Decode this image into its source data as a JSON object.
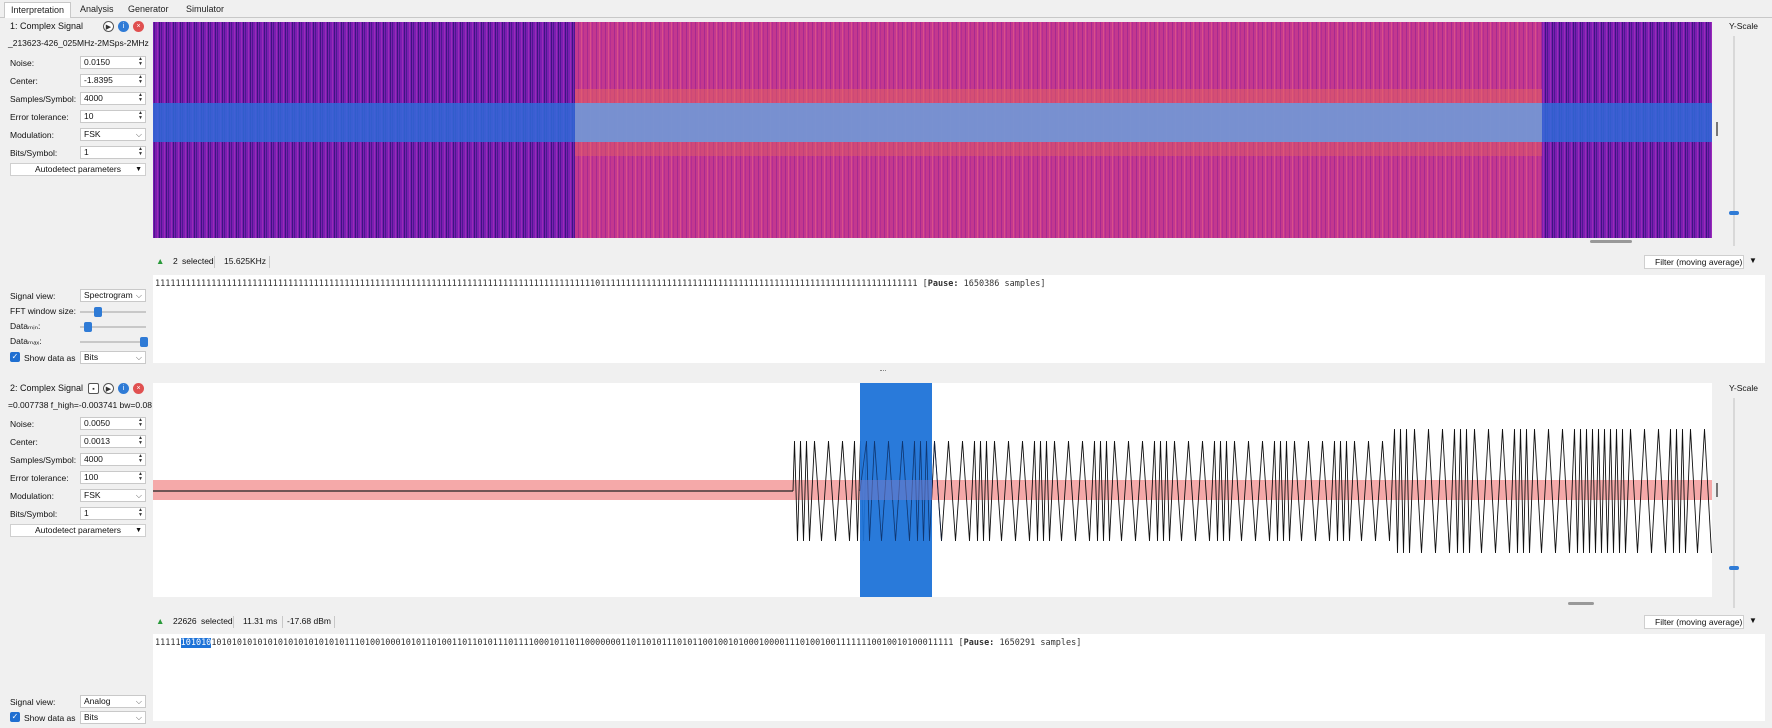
{
  "tabs": [
    "Interpretation",
    "Analysis",
    "Generator",
    "Simulator"
  ],
  "signal1": {
    "title": "1:  Complex Signal",
    "file": "_213623-426_025MHz-2MSps-2MHz",
    "params": {
      "noise_label": "Noise:",
      "noise": "0.0150",
      "center_label": "Center:",
      "center": "-1.8395",
      "sps_label": "Samples/Symbol:",
      "sps": "4000",
      "err_label": "Error tolerance:",
      "err": "10",
      "mod_label": "Modulation:",
      "mod": "FSK",
      "bps_label": "Bits/Symbol:",
      "bps": "1"
    },
    "autodetect": "Autodetect parameters",
    "yscale": "Y-Scale",
    "info": {
      "selected_count": "2",
      "selected_label": "selected",
      "freq": "15.625KHz"
    },
    "filter": "Filter (moving average)",
    "bits_text": "11111111111111111111111111111111111111111111111111111111111111111111111111111111111111011111111111111111111111111111111111111111111111111111111111111",
    "pause_label": "Pause:",
    "pause_value": "1650386 samples",
    "view": {
      "signal_view_label": "Signal view:",
      "signal_view": "Spectrogram",
      "fft_label": "FFT window size:",
      "data_min_label": "Dataₘᵢₙ:",
      "data_max_label": "Dataₘₐₓ:",
      "show_as_label": "Show data as",
      "show_as": "Bits"
    }
  },
  "signal2": {
    "title": "2:  Complex Signal",
    "file": "=0.007738 f_high=-0.003741 bw=0.08",
    "params": {
      "noise_label": "Noise:",
      "noise": "0.0050",
      "center_label": "Center:",
      "center": "0.0013",
      "sps_label": "Samples/Symbol:",
      "sps": "4000",
      "err_label": "Error tolerance:",
      "err": "100",
      "mod_label": "Modulation:",
      "mod": "FSK",
      "bps_label": "Bits/Symbol:",
      "bps": "1"
    },
    "autodetect": "Autodetect parameters",
    "yscale": "Y-Scale",
    "info": {
      "selected_count": "22626",
      "selected_label": "selected",
      "time": "11.31 ms",
      "power": "-17.68 dBm"
    },
    "filter": "Filter (moving average)",
    "bits_prefix": "11111",
    "bits_highlight": "101010",
    "bits_rest": "1010101010101010101010101011101001000101011010011011010111011110001011011000000011011010111010110010010100010000111010010011111110010010100011111",
    "pause_label": "Pause:",
    "pause_value": "1650291 samples",
    "view": {
      "signal_view_label": "Signal view:",
      "signal_view": "Analog",
      "show_as_label": "Show data as",
      "show_as": "Bits"
    }
  },
  "colors": {
    "accent": "#1e73d8",
    "selection": "#1f6fd1",
    "noise_band": "#f4a0a0"
  }
}
